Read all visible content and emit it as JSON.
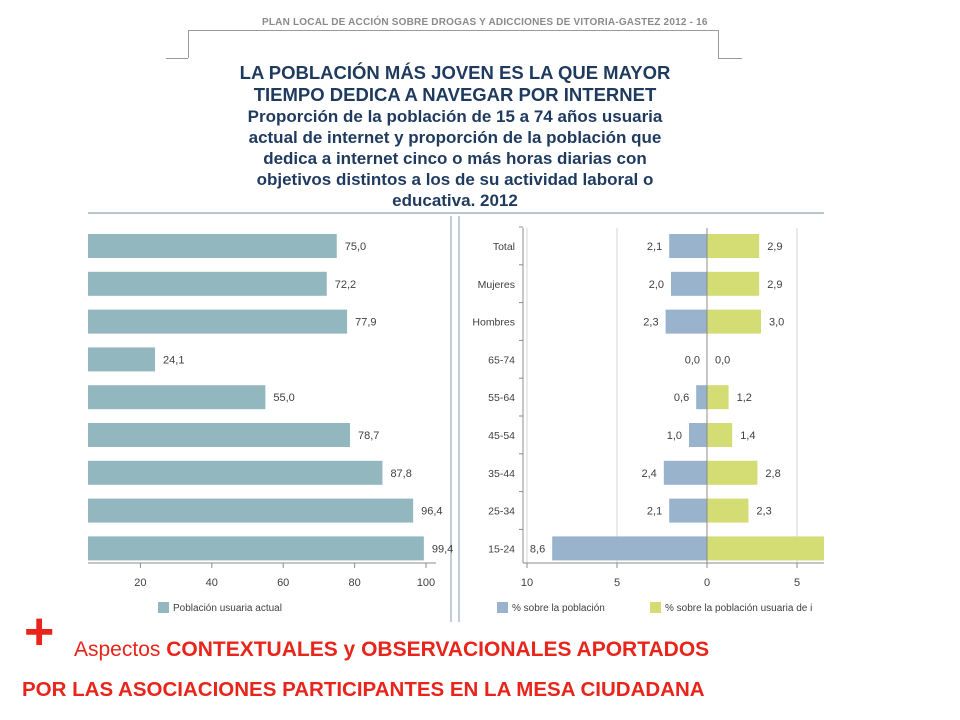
{
  "header": {
    "text": "PLAN LOCAL DE ACCIÓN SOBRE DROGAS Y ADICCIONES  DE VITORIA-GASTEZ     2012 - 16"
  },
  "title": {
    "main_line1": "LA POBLACIÓN MÁS JOVEN ES LA QUE MAYOR",
    "main_line2": "TIEMPO DEDICA A NAVEGAR POR INTERNET",
    "sub_line1": "Proporción de la población de 15 a 74 años usuaria",
    "sub_line2": "actual de internet y proporción de la población que",
    "sub_line3": "dedica a internet cinco o más horas diarias con",
    "sub_line4": "objetivos distintos a los de su actividad laboral o",
    "sub_line5": "educativa. 2012"
  },
  "colors": {
    "left_bar": "#93b7bf",
    "pop_bar": "#9ab3cc",
    "users_bar": "#d4dc74",
    "footer": "#e8241b",
    "title": "#1f3a5f"
  },
  "chart_data": [
    {
      "type": "bar",
      "orientation": "horizontal",
      "categories": [
        "Total",
        "Mujeres",
        "Hombres",
        "65-74",
        "55-64",
        "45-54",
        "35-44",
        "25-34",
        "15-24"
      ],
      "series": [
        {
          "name": "Población usuaria actual",
          "values": [
            75.0,
            72.2,
            77.9,
            24.1,
            55.0,
            78.7,
            87.8,
            96.4,
            99.4
          ]
        }
      ],
      "value_labels": [
        "75,0",
        "72,2",
        "77,9",
        "24,1",
        "55,0",
        "78,7",
        "87,8",
        "96,4",
        "99,4"
      ],
      "x_ticks": [
        "20",
        "40",
        "60",
        "80",
        "100"
      ],
      "xlim": [
        0,
        100
      ],
      "grid": false,
      "legend": "bottom-left"
    },
    {
      "type": "bar",
      "orientation": "horizontal-diverging",
      "categories": [
        "Total",
        "Mujeres",
        "Hombres",
        "65-74",
        "55-64",
        "45-54",
        "35-44",
        "25-34",
        "15-24"
      ],
      "series": [
        {
          "name": "% sobre la población",
          "values": [
            2.1,
            2.0,
            2.3,
            0.0,
            0.6,
            1.0,
            2.4,
            2.1,
            8.6
          ],
          "labels": [
            "2,1",
            "2,0",
            "2,3",
            "0,0",
            "0,6",
            "1,0",
            "2,4",
            "2,1",
            "8,6"
          ]
        },
        {
          "name": "% sobre la población usuaria de i",
          "values": [
            2.9,
            2.9,
            3.0,
            0.0,
            1.2,
            1.4,
            2.8,
            2.3,
            7.0
          ],
          "labels": [
            "2,9",
            "2,9",
            "3,0",
            "0,0",
            "1,2",
            "1,4",
            "2,8",
            "2,3",
            ""
          ]
        }
      ],
      "x_ticks": [
        "10",
        "5",
        "0",
        "5"
      ],
      "xlim": [
        -10,
        6.5
      ],
      "grid": true,
      "legend": "bottom"
    }
  ],
  "footer": {
    "plus": "+",
    "line1_prefix": "Aspectos ",
    "line1_rest": "CONTEXTUALES y OBSERVACIONALES APORTADOS",
    "line2": "POR LAS ASOCIACIONES PARTICIPANTES EN LA MESA CIUDADANA"
  }
}
